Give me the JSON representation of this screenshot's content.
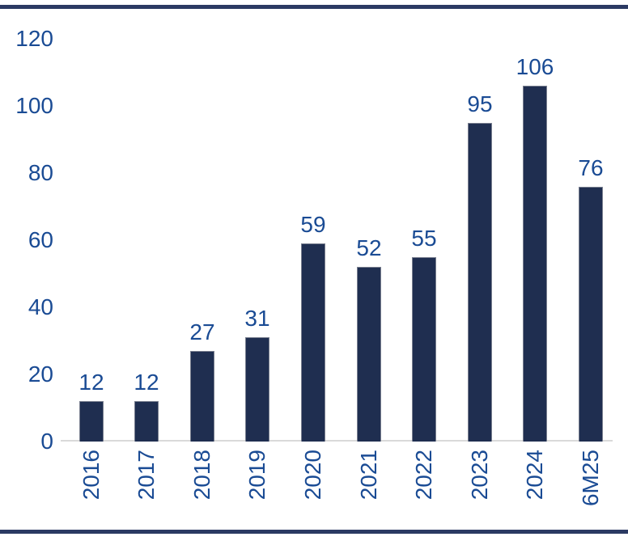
{
  "chart_data": {
    "type": "bar",
    "categories": [
      "2016",
      "2017",
      "2018",
      "2019",
      "2020",
      "2021",
      "2022",
      "2023",
      "2024",
      "6M25"
    ],
    "values": [
      12,
      12,
      27,
      31,
      59,
      52,
      55,
      95,
      106,
      76
    ],
    "data_labels": [
      "12",
      "12",
      "27",
      "31",
      "59",
      "52",
      "55",
      "95",
      "106",
      "76"
    ],
    "title": "",
    "xlabel": "",
    "ylabel": "",
    "ylim": [
      0,
      120
    ],
    "yticks": [
      0,
      20,
      40,
      60,
      80,
      100,
      120
    ],
    "grid": false,
    "legend": "none",
    "x_tick_rotation": -90,
    "colors": {
      "bar_fill": "#1F2E50",
      "text_blue": "#1A4B94",
      "border_rule": "#2B3A63",
      "axis_baseline": "#D9D9D9",
      "background": "#FFFFFF"
    }
  }
}
